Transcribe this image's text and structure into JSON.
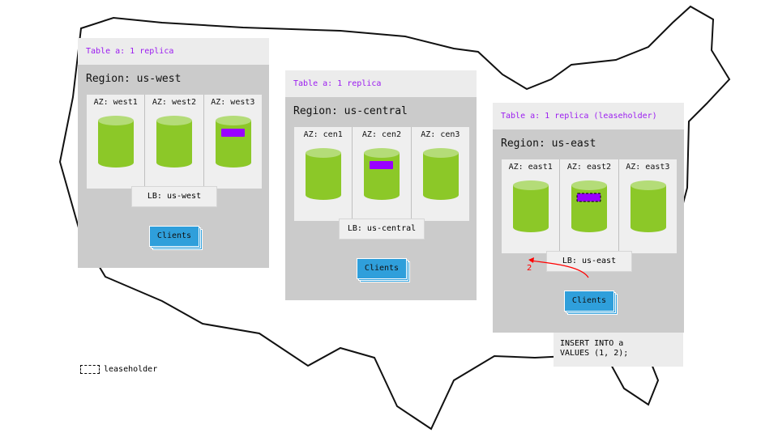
{
  "regions": [
    {
      "table": "Table a: 1 replica",
      "name": "Region: us-west",
      "azs": [
        "AZ: west1",
        "AZ: west2",
        "AZ: west3"
      ],
      "replica_az": 2,
      "leaseholder": false,
      "lb": "LB: us-west",
      "clients": "Clients"
    },
    {
      "table": "Table a: 1 replica",
      "name": "Region: us-central",
      "azs": [
        "AZ: cen1",
        "AZ: cen2",
        "AZ: cen3"
      ],
      "replica_az": 1,
      "leaseholder": false,
      "lb": "LB: us-central",
      "clients": "Clients"
    },
    {
      "table": "Table a: 1 replica (leaseholder)",
      "name": "Region: us-east",
      "azs": [
        "AZ: east1",
        "AZ: east2",
        "AZ: east3"
      ],
      "replica_az": 1,
      "leaseholder": true,
      "lb": "LB: us-east",
      "clients": "Clients"
    }
  ],
  "arrow_label": "2",
  "sql": "INSERT INTO a\nVALUES (1, 2);",
  "legend": "leaseholder",
  "colors": {
    "node": "#8cc828",
    "node_top": "#b4dc78",
    "replica": "#9900ff",
    "clients": "#2f9fdb",
    "title_text": "#9b1cf0",
    "arrow": "#ff0000"
  }
}
